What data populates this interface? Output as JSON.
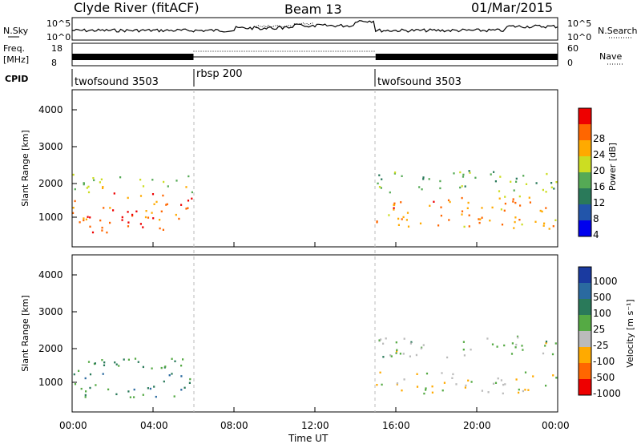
{
  "header": {
    "station": "Clyde River (fitACF)",
    "beam": "Beam 13",
    "date": "01/Mar/2015"
  },
  "noise_panel": {
    "left_label": "N.Sky",
    "right_label": "N.Search",
    "left_ticks": [
      "10^5",
      "10^0"
    ],
    "right_ticks": [
      "10^5",
      "10^0"
    ]
  },
  "freq_panel": {
    "left_label_1": "Freq.",
    "left_label_2": "[MHz]",
    "right_label": "Nave",
    "left_ticks": [
      "18",
      "8"
    ],
    "right_ticks": [
      "60",
      "0"
    ]
  },
  "cpid": {
    "label": "CPID",
    "segments": [
      {
        "name": "twofsound 3503",
        "start_h": 0,
        "end_h": 6
      },
      {
        "name": "rbsp 200",
        "start_h": 6,
        "end_h": 15
      },
      {
        "name": "twofsound 3503",
        "start_h": 15,
        "end_h": 24
      }
    ]
  },
  "power_panel": {
    "ylabel": "Slant Range [km]",
    "yticks": [
      "4000",
      "3000",
      "2000",
      "1000"
    ],
    "colorbar_label": "Power [dB]",
    "colorbar_ticks": [
      "28",
      "24",
      "20",
      "16",
      "12",
      "8",
      "4"
    ],
    "colors": [
      "#0000ee",
      "#2255aa",
      "#2a7a5a",
      "#55aa55",
      "#ccdd22",
      "#ffaa00",
      "#ff6600",
      "#ee0000"
    ]
  },
  "velocity_panel": {
    "ylabel": "Slant Range [km]",
    "yticks": [
      "4000",
      "3000",
      "2000",
      "1000"
    ],
    "colorbar_label": "Velocity [m s⁻¹]",
    "colorbar_ticks": [
      "1000",
      "500",
      "100",
      "25",
      "-25",
      "-100",
      "-500",
      "-1000"
    ],
    "colors": [
      "#1a3aa0",
      "#2a6aa0",
      "#2a7a5a",
      "#55aa44",
      "#bbbbbb",
      "#ffaa00",
      "#ff6600",
      "#ee0000"
    ]
  },
  "xaxis": {
    "ticks": [
      "00:00",
      "04:00",
      "08:00",
      "12:00",
      "16:00",
      "20:00",
      "00:00"
    ],
    "label": "Time UT"
  },
  "chart_data": {
    "type": "heatmap",
    "title": "Clyde River (fitACF)  Beam 13  01/Mar/2015",
    "xlabel": "Time UT",
    "ylabel": "Slant Range [km]",
    "xlim": [
      "00:00",
      "24:00"
    ],
    "ylim": [
      180,
      4500
    ],
    "mode_changes_hours": [
      6,
      15
    ],
    "panels": [
      {
        "name": "Power [dB]",
        "colorbar_range": [
          0,
          30
        ],
        "scatter_regions": [
          {
            "t_start": 0.0,
            "t_end": 5.9,
            "range_lo": 600,
            "range_hi": 1700,
            "typical_value": 26
          },
          {
            "t_start": 0.0,
            "t_end": 5.9,
            "range_lo": 1700,
            "range_hi": 2200,
            "typical_value": 16
          },
          {
            "t_start": 15.0,
            "t_end": 24.0,
            "range_lo": 700,
            "range_hi": 1600,
            "typical_value": 22
          },
          {
            "t_start": 15.0,
            "t_end": 24.0,
            "range_lo": 1700,
            "range_hi": 2300,
            "typical_value": 14
          }
        ]
      },
      {
        "name": "Velocity [m s-1]",
        "colorbar_range": [
          -1000,
          1000
        ],
        "scatter_regions": [
          {
            "t_start": 0.0,
            "t_end": 5.9,
            "range_lo": 600,
            "range_hi": 1700,
            "typical_value": 300
          },
          {
            "t_start": 15.0,
            "t_end": 24.0,
            "range_lo": 1700,
            "range_hi": 2300,
            "typical_value": 0
          },
          {
            "t_start": 15.0,
            "t_end": 24.0,
            "range_lo": 700,
            "range_hi": 1300,
            "typical_value": -150
          }
        ]
      }
    ]
  }
}
